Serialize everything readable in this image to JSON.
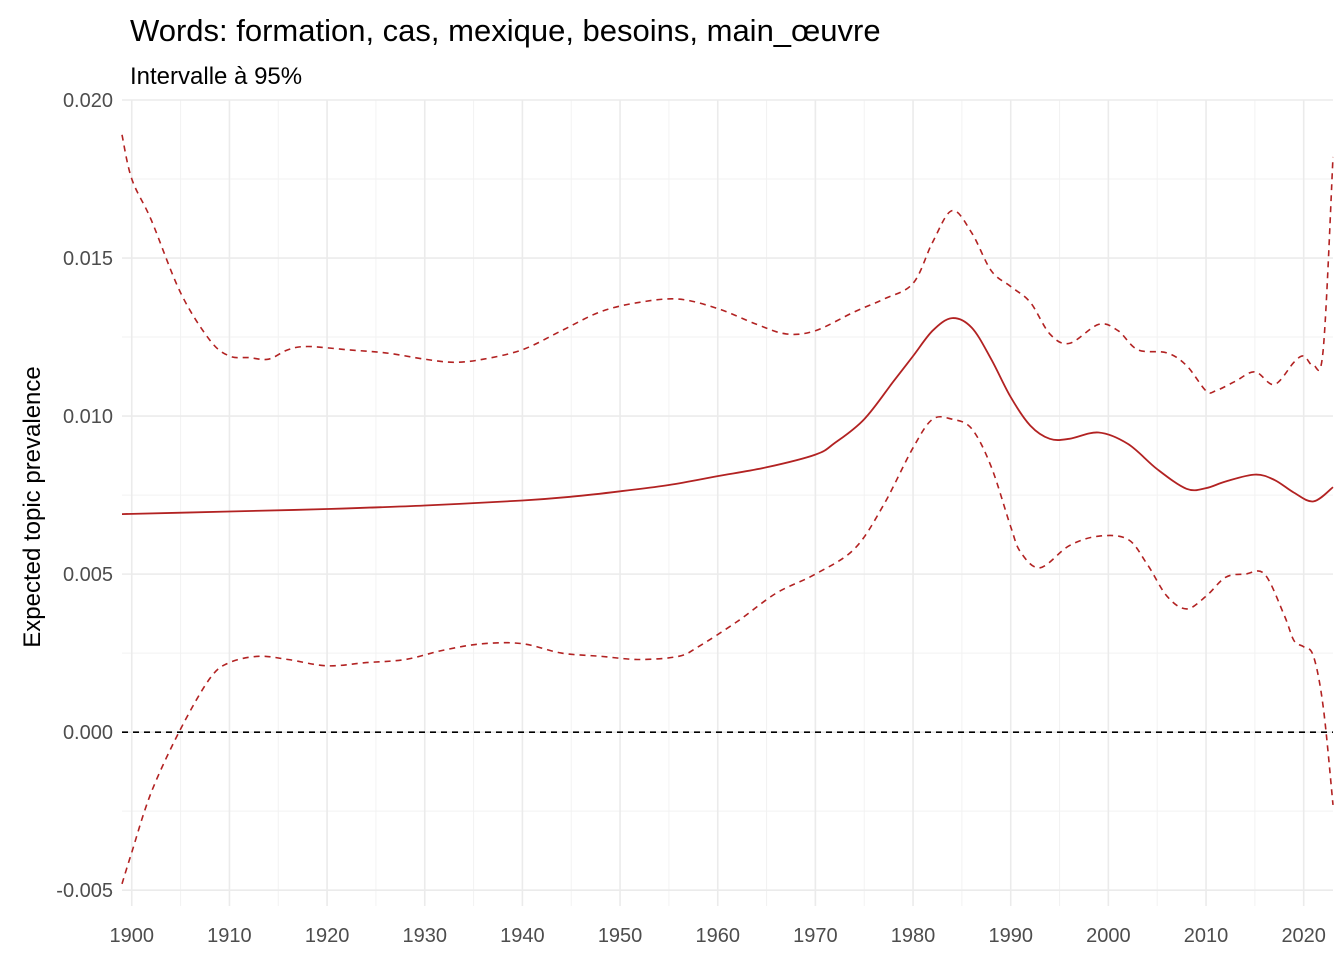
{
  "chart_data": {
    "type": "line",
    "title": "Words: formation, cas, mexique, besoins, main_œuvre",
    "subtitle": "Intervalle à 95%",
    "xlabel": "",
    "ylabel": "Expected topic prevalence",
    "xlim": [
      1899,
      2023
    ],
    "ylim": [
      -0.0055,
      0.02
    ],
    "x_ticks": [
      1900,
      1910,
      1920,
      1930,
      1940,
      1950,
      1960,
      1970,
      1980,
      1990,
      2000,
      2010,
      2020
    ],
    "y_ticks": [
      -0.005,
      0.0,
      0.005,
      0.01,
      0.015,
      0.02
    ],
    "y_tick_labels": [
      "-0.005",
      "0.000",
      "0.005",
      "0.010",
      "0.015",
      "0.020"
    ],
    "grid": true,
    "legend": "none",
    "reference_line": {
      "y": 0.0,
      "style": "dashed",
      "color": "#000000"
    },
    "colors": {
      "series": "#b22222"
    },
    "series": [
      {
        "role": "estimate",
        "style": "solid",
        "x": [
          1899,
          1910,
          1920,
          1930,
          1940,
          1945,
          1950,
          1955,
          1960,
          1965,
          1970,
          1972,
          1975,
          1978,
          1980,
          1982,
          1984,
          1986,
          1988,
          1990,
          1992,
          1994,
          1996,
          1999,
          2002,
          2005,
          2008,
          2010,
          2012,
          2015,
          2017,
          2019,
          2021,
          2023
        ],
        "y": [
          0.0069,
          0.00698,
          0.00706,
          0.00717,
          0.00733,
          0.00745,
          0.00762,
          0.00782,
          0.0081,
          0.00838,
          0.00878,
          0.00915,
          0.0099,
          0.0111,
          0.0119,
          0.0127,
          0.0131,
          0.0128,
          0.0118,
          0.0106,
          0.0097,
          0.00928,
          0.00928,
          0.00948,
          0.00912,
          0.00832,
          0.0077,
          0.00772,
          0.00793,
          0.00815,
          0.00798,
          0.00758,
          0.0073,
          0.00775
        ]
      },
      {
        "role": "upper 95%",
        "style": "dashed",
        "x": [
          1899,
          1900,
          1902,
          1905,
          1908,
          1910,
          1912,
          1914,
          1916,
          1918,
          1922,
          1926,
          1930,
          1933,
          1936,
          1940,
          1944,
          1948,
          1952,
          1956,
          1960,
          1964,
          1967,
          1970,
          1974,
          1977,
          1980,
          1982,
          1984,
          1986,
          1988,
          1990,
          1992,
          1994,
          1996,
          1999,
          2001,
          2003,
          2006,
          2008,
          2010,
          2011,
          2013,
          2015,
          2017,
          2019,
          2020,
          2021,
          2022,
          2023
        ],
        "y": [
          0.0189,
          0.0175,
          0.0162,
          0.0139,
          0.0124,
          0.0119,
          0.01185,
          0.0118,
          0.0121,
          0.0122,
          0.0121,
          0.012,
          0.0118,
          0.0117,
          0.0118,
          0.0121,
          0.0127,
          0.0133,
          0.0136,
          0.0137,
          0.0134,
          0.0129,
          0.0126,
          0.0127,
          0.0133,
          0.0137,
          0.0142,
          0.0155,
          0.0165,
          0.0158,
          0.0146,
          0.0141,
          0.0136,
          0.0126,
          0.0123,
          0.0129,
          0.0127,
          0.0121,
          0.012,
          0.0116,
          0.0108,
          0.0108,
          0.0111,
          0.0114,
          0.011,
          0.0117,
          0.0119,
          0.0116,
          0.0121,
          0.0182
        ]
      },
      {
        "role": "lower 95%",
        "style": "dashed",
        "x": [
          1899,
          1900,
          1902,
          1905,
          1908,
          1910,
          1913,
          1916,
          1920,
          1924,
          1928,
          1932,
          1936,
          1940,
          1944,
          1948,
          1952,
          1956,
          1958,
          1962,
          1966,
          1970,
          1974,
          1977,
          1980,
          1982,
          1984,
          1986,
          1988,
          1990,
          1991,
          1993,
          1996,
          1999,
          2002,
          2004,
          2006,
          2008,
          2010,
          2012,
          2014,
          2016,
          2018,
          2019,
          2020,
          2021,
          2022,
          2023
        ],
        "y": [
          -0.0048,
          -0.0038,
          -0.0019,
          0.0001,
          0.0017,
          0.0022,
          0.0024,
          0.0023,
          0.0021,
          0.0022,
          0.0023,
          0.0026,
          0.0028,
          0.0028,
          0.0025,
          0.0024,
          0.0023,
          0.0024,
          0.0027,
          0.0035,
          0.0044,
          0.005,
          0.0058,
          0.0072,
          0.009,
          0.0099,
          0.0099,
          0.0096,
          0.0084,
          0.0065,
          0.0057,
          0.0052,
          0.0059,
          0.0062,
          0.0061,
          0.0053,
          0.0043,
          0.0039,
          0.0043,
          0.0049,
          0.005,
          0.005,
          0.0037,
          0.0029,
          0.0027,
          0.0024,
          0.0008,
          -0.0023
        ]
      }
    ]
  }
}
